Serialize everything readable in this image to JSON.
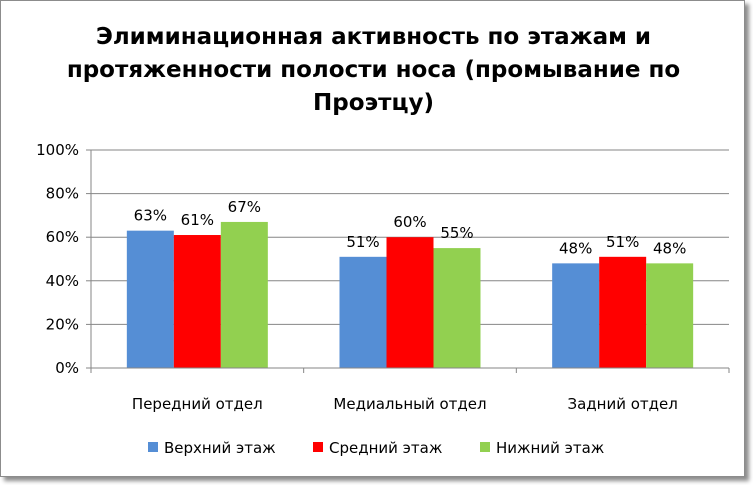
{
  "chart_data": {
    "type": "bar",
    "title": "Элиминационная активность по этажам и протяженности полости носа (промывание по Проэтцу)",
    "xlabel": "",
    "ylabel": "",
    "categories": [
      "Передний отдел",
      "Медиальный отдел",
      "Задний отдел"
    ],
    "series": [
      {
        "name": "Верхний этаж",
        "values": [
          63,
          51,
          48
        ],
        "color": "#558ED5"
      },
      {
        "name": "Средний этаж",
        "values": [
          61,
          60,
          51
        ],
        "color": "#FF0000"
      },
      {
        "name": "Нижний этаж",
        "values": [
          67,
          55,
          48
        ],
        "color": "#92D050"
      }
    ],
    "value_suffix": "%",
    "ylim": [
      0,
      100
    ],
    "yticks": [
      "0%",
      "20%",
      "40%",
      "60%",
      "80%",
      "100%"
    ],
    "ytick_values": [
      0,
      20,
      40,
      60,
      80,
      100
    ],
    "grid": true,
    "legend_position": "bottom"
  }
}
